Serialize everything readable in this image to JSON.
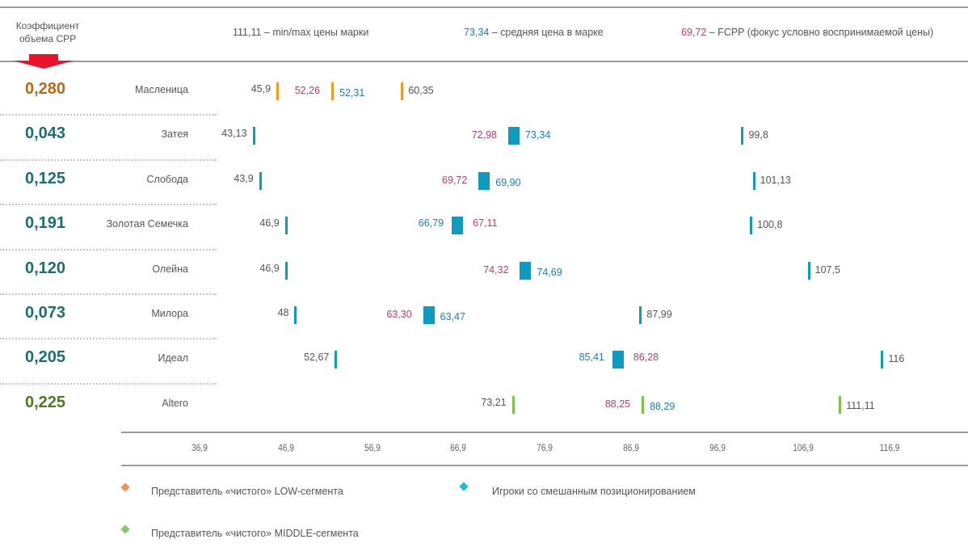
{
  "header": {
    "coef_title": "Коэффициент объема СРР",
    "legend_minmax_value": "111,11",
    "legend_minmax_text": " – min/max цены марки",
    "legend_avg_value": "73,34",
    "legend_avg_text": " – средняя цена в марке",
    "legend_fcpp_value": "69,72",
    "legend_fcpp_text": " – FCPP (фокус условно воспринимаемой цены)"
  },
  "colors": {
    "low": "#f39a1e",
    "mixed": "#0e9bbf",
    "middle": "#7dc243",
    "avg_text": "#1a7fb5",
    "fcpp_text": "#c0396b",
    "coef_low": "#b96a14",
    "coef_mixed": "#1d6e6e",
    "coef_middle": "#4f7a1e",
    "arrow": "#e8132b"
  },
  "legend": {
    "items": [
      {
        "label": "Представитель «чистого» LOW-сегмента",
        "color": "#f0935a"
      },
      {
        "label": "Игроки со смешанным позиционированием",
        "color": "#1cc0c4"
      },
      {
        "label": "Представитель «чистого» MIDDLE-сегмента",
        "color": "#8fc26a"
      }
    ]
  },
  "chart_data": {
    "type": "range-marker",
    "title": "",
    "xlabel": "",
    "ylabel": "",
    "x_ticks": [
      "36,9",
      "46,9",
      "56,9",
      "66,9",
      "76,9",
      "86,9",
      "96,9",
      "106,9",
      "116,9"
    ],
    "x_tick_values": [
      36.9,
      46.9,
      56.9,
      66.9,
      76.9,
      86.9,
      96.9,
      106.9,
      116.9
    ],
    "xlim": [
      36.9,
      116.9
    ],
    "series_keys": [
      "min",
      "avg",
      "fcpp",
      "max"
    ],
    "rows": [
      {
        "brand": "Масленица",
        "coef": "0,280",
        "segment": "low",
        "min": 45.9,
        "min_label": "45,9",
        "fcpp": 52.26,
        "fcpp_label": "52,26",
        "avg": 52.31,
        "avg_label": "52,31",
        "max": 60.35,
        "max_label": "60,35"
      },
      {
        "brand": "Затея",
        "coef": "0,043",
        "segment": "mixed",
        "min": 43.13,
        "min_label": "43,13",
        "fcpp": 72.98,
        "fcpp_label": "72,98",
        "avg": 73.34,
        "avg_label": "73,34",
        "max": 99.8,
        "max_label": "99,8"
      },
      {
        "brand": "Слобода",
        "coef": "0,125",
        "segment": "mixed",
        "min": 43.9,
        "min_label": "43,9",
        "fcpp": 69.72,
        "fcpp_label": "69,72",
        "avg": 69.9,
        "avg_label": "69,90",
        "max": 101.13,
        "max_label": "101,13"
      },
      {
        "brand": "Золотая Семечка",
        "coef": "0,191",
        "segment": "mixed",
        "min": 46.9,
        "min_label": "46,9",
        "fcpp": 67.11,
        "fcpp_label": "67,11",
        "avg": 66.79,
        "avg_label": "66,79",
        "max": 100.8,
        "max_label": "100,8"
      },
      {
        "brand": "Олейна",
        "coef": "0,120",
        "segment": "mixed",
        "min": 46.9,
        "min_label": "46,9",
        "fcpp": 74.32,
        "fcpp_label": "74,32",
        "avg": 74.69,
        "avg_label": "74,69",
        "max": 107.5,
        "max_label": "107,5"
      },
      {
        "brand": "Милора",
        "coef": "0,073",
        "segment": "mixed",
        "min": 48,
        "min_label": "48",
        "fcpp": 63.3,
        "fcpp_label": "63,30",
        "avg": 63.47,
        "avg_label": "63,47",
        "max": 87.99,
        "max_label": "87,99"
      },
      {
        "brand": "Идеал",
        "coef": "0,205",
        "segment": "mixed",
        "min": 52.67,
        "min_label": "52,67",
        "fcpp": 86.28,
        "fcpp_label": "86,28",
        "avg": 85.41,
        "avg_label": "85,41",
        "max": 116,
        "max_label": "116"
      },
      {
        "brand": "Altero",
        "coef": "0,225",
        "segment": "middle",
        "min": 73.21,
        "min_label": "73,21",
        "fcpp": 88.25,
        "fcpp_label": "88,25",
        "avg": 88.29,
        "avg_label": "88,29",
        "max": 111.11,
        "max_label": "111,11"
      }
    ]
  }
}
